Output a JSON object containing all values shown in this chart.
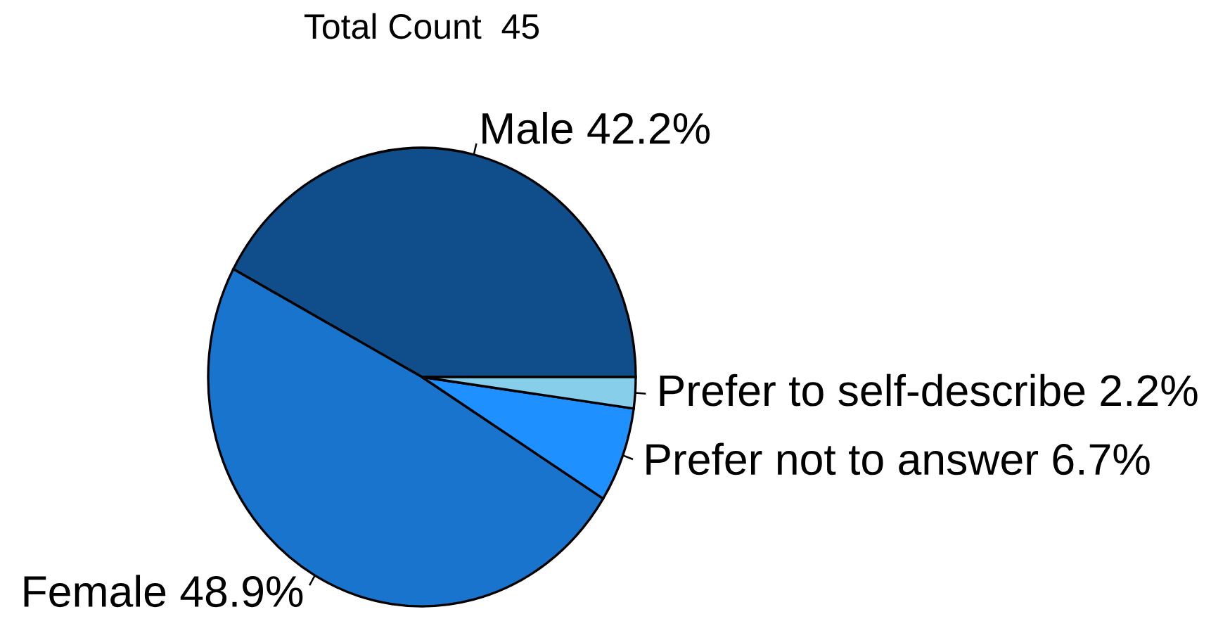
{
  "chart_data": {
    "type": "pie",
    "title": "Total Count  45",
    "categories": [
      "Male",
      "Female",
      "Prefer not to answer",
      "Prefer to self-describe"
    ],
    "values": [
      42.2,
      48.9,
      6.7,
      2.2
    ],
    "colors": [
      "#104e8b",
      "#1874cd",
      "#1e90ff",
      "#87ceeb"
    ],
    "value_labels": [
      "42.2%",
      "48.9%",
      "6.7%",
      "2.2%"
    ]
  }
}
